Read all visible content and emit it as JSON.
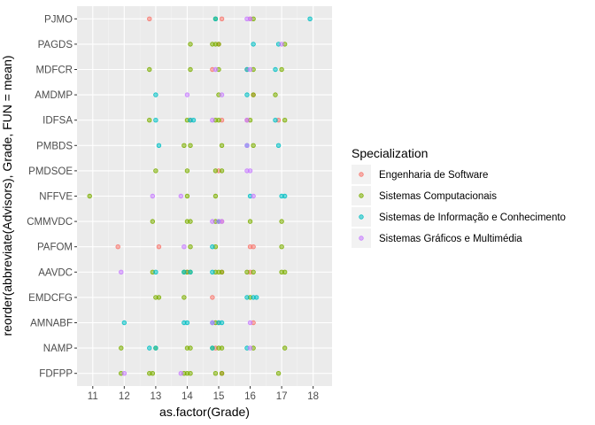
{
  "chart_data": {
    "type": "scatter",
    "title": "",
    "xlabel": "as.factor(Grade)",
    "ylabel": "reorder(abbreviate(Advisors), Grade, FUN = mean)",
    "x_ticks": [
      "11",
      "12",
      "13",
      "14",
      "15",
      "16",
      "17",
      "18"
    ],
    "xlim": [
      10.5,
      18.6
    ],
    "categories": [
      "PJMO",
      "PAGDS",
      "MDFCR",
      "AMDMP",
      "IDFSA",
      "PMBDS",
      "PMDSOE",
      "NFFVE",
      "CMMVDC",
      "PAFOM",
      "AAVDC",
      "EMDCFG",
      "AMNABF",
      "NAMP",
      "FDFPP"
    ],
    "legend": {
      "title": "Specialization",
      "position": "right",
      "entries": [
        "Engenharia de Software",
        "Sistemas Computacionais",
        "Sistemas de Informação e Conhecimento",
        "Sistemas Gráficos e Multimédia"
      ]
    },
    "colors": [
      "#F8766D",
      "#7CAE00",
      "#00BFC4",
      "#C77CFF"
    ],
    "grid": true,
    "series": [
      {
        "name": "Engenharia de Software",
        "points": [
          [
            "PJMO",
            12.8
          ],
          [
            "PJMO",
            15.1
          ],
          [
            "PJMO",
            16.0
          ],
          [
            "PAGDS",
            15.0
          ],
          [
            "MDFCR",
            14.8
          ],
          [
            "MDFCR",
            15.9
          ],
          [
            "AMDMP",
            16.1
          ],
          [
            "IDFSA",
            14.1
          ],
          [
            "IDFSA",
            15.1
          ],
          [
            "IDFSA",
            15.9
          ],
          [
            "IDFSA",
            16.9
          ],
          [
            "PMDSOE",
            15.0
          ],
          [
            "CMMVDC",
            15.1
          ],
          [
            "PAFOM",
            11.8
          ],
          [
            "PAFOM",
            13.1
          ],
          [
            "PAFOM",
            16.0
          ],
          [
            "PAFOM",
            16.1
          ],
          [
            "AAVDC",
            14.0
          ],
          [
            "AAVDC",
            15.1
          ],
          [
            "AAVDC",
            16.0
          ],
          [
            "EMDCFG",
            14.8
          ],
          [
            "AMNABF",
            15.0
          ],
          [
            "AMNABF",
            16.1
          ],
          [
            "NAMP",
            14.9
          ],
          [
            "FDFPP",
            15.1
          ]
        ]
      },
      {
        "name": "Sistemas Computacionais",
        "points": [
          [
            "PJMO",
            14.9
          ],
          [
            "PJMO",
            16.1
          ],
          [
            "PAGDS",
            14.1
          ],
          [
            "PAGDS",
            14.8
          ],
          [
            "PAGDS",
            14.9
          ],
          [
            "PAGDS",
            15.0
          ],
          [
            "PAGDS",
            17.1
          ],
          [
            "MDFCR",
            12.8
          ],
          [
            "MDFCR",
            14.1
          ],
          [
            "MDFCR",
            15.0
          ],
          [
            "MDFCR",
            16.1
          ],
          [
            "MDFCR",
            17.0
          ],
          [
            "AMDMP",
            15.0
          ],
          [
            "AMDMP",
            16.1
          ],
          [
            "AMDMP",
            16.8
          ],
          [
            "IDFSA",
            12.8
          ],
          [
            "IDFSA",
            14.0
          ],
          [
            "IDFSA",
            14.9
          ],
          [
            "IDFSA",
            15.0
          ],
          [
            "IDFSA",
            16.0
          ],
          [
            "IDFSA",
            17.1
          ],
          [
            "PMBDS",
            13.9
          ],
          [
            "PMBDS",
            14.1
          ],
          [
            "PMBDS",
            15.1
          ],
          [
            "PMBDS",
            16.1
          ],
          [
            "PMDSOE",
            13.0
          ],
          [
            "PMDSOE",
            14.0
          ],
          [
            "PMDSOE",
            14.9
          ],
          [
            "PMDSOE",
            15.1
          ],
          [
            "NFFVE",
            10.9
          ],
          [
            "NFFVE",
            14.0
          ],
          [
            "NFFVE",
            14.9
          ],
          [
            "CMMVDC",
            12.9
          ],
          [
            "CMMVDC",
            14.0
          ],
          [
            "CMMVDC",
            14.1
          ],
          [
            "CMMVDC",
            14.9
          ],
          [
            "CMMVDC",
            15.0
          ],
          [
            "CMMVDC",
            16.0
          ],
          [
            "CMMVDC",
            17.0
          ],
          [
            "PAFOM",
            14.1
          ],
          [
            "PAFOM",
            14.9
          ],
          [
            "PAFOM",
            17.0
          ],
          [
            "AAVDC",
            12.9
          ],
          [
            "AAVDC",
            13.9
          ],
          [
            "AAVDC",
            14.0
          ],
          [
            "AAVDC",
            14.1
          ],
          [
            "AAVDC",
            14.9
          ],
          [
            "AAVDC",
            15.0
          ],
          [
            "AAVDC",
            15.1
          ],
          [
            "AAVDC",
            15.9
          ],
          [
            "AAVDC",
            16.1
          ],
          [
            "AAVDC",
            17.0
          ],
          [
            "AAVDC",
            17.1
          ],
          [
            "EMDCFG",
            13.0
          ],
          [
            "EMDCFG",
            13.1
          ],
          [
            "EMDCFG",
            13.9
          ],
          [
            "EMDCFG",
            16.0
          ],
          [
            "AMNABF",
            14.9
          ],
          [
            "NAMP",
            11.9
          ],
          [
            "NAMP",
            13.0
          ],
          [
            "NAMP",
            14.0
          ],
          [
            "NAMP",
            14.1
          ],
          [
            "NAMP",
            14.8
          ],
          [
            "NAMP",
            15.0
          ],
          [
            "NAMP",
            15.1
          ],
          [
            "NAMP",
            16.1
          ],
          [
            "NAMP",
            17.1
          ],
          [
            "FDFPP",
            11.9
          ],
          [
            "FDFPP",
            12.8
          ],
          [
            "FDFPP",
            12.9
          ],
          [
            "FDFPP",
            13.9
          ],
          [
            "FDFPP",
            14.0
          ],
          [
            "FDFPP",
            14.1
          ],
          [
            "FDFPP",
            14.9
          ],
          [
            "FDFPP",
            15.1
          ],
          [
            "FDFPP",
            16.9
          ]
        ]
      },
      {
        "name": "Sistemas de Informação e Conhecimento",
        "points": [
          [
            "PJMO",
            14.9
          ],
          [
            "PJMO",
            17.9
          ],
          [
            "PAGDS",
            16.1
          ],
          [
            "PAGDS",
            16.9
          ],
          [
            "MDFCR",
            15.9
          ],
          [
            "MDFCR",
            16.8
          ],
          [
            "AMDMP",
            13.0
          ],
          [
            "AMDMP",
            15.9
          ],
          [
            "IDFSA",
            13.0
          ],
          [
            "IDFSA",
            14.1
          ],
          [
            "IDFSA",
            14.2
          ],
          [
            "IDFSA",
            16.8
          ],
          [
            "PMBDS",
            13.1
          ],
          [
            "PMBDS",
            15.9
          ],
          [
            "PMBDS",
            16.9
          ],
          [
            "NFFVE",
            16.0
          ],
          [
            "NFFVE",
            17.0
          ],
          [
            "NFFVE",
            17.1
          ],
          [
            "CMMVDC",
            15.0
          ],
          [
            "PAFOM",
            14.8
          ],
          [
            "AAVDC",
            13.0
          ],
          [
            "AAVDC",
            13.9
          ],
          [
            "AAVDC",
            14.1
          ],
          [
            "AAVDC",
            14.8
          ],
          [
            "EMDCFG",
            15.9
          ],
          [
            "EMDCFG",
            16.1
          ],
          [
            "EMDCFG",
            16.2
          ],
          [
            "AMNABF",
            12.0
          ],
          [
            "AMNABF",
            13.9
          ],
          [
            "AMNABF",
            14.0
          ],
          [
            "AMNABF",
            14.8
          ],
          [
            "AMNABF",
            15.0
          ],
          [
            "AMNABF",
            15.1
          ],
          [
            "NAMP",
            12.8
          ],
          [
            "NAMP",
            13.0
          ],
          [
            "NAMP",
            14.8
          ],
          [
            "NAMP",
            15.9
          ]
        ]
      },
      {
        "name": "Sistemas Gráficos e Multimédia",
        "points": [
          [
            "PJMO",
            15.9
          ],
          [
            "PJMO",
            16.0
          ],
          [
            "PAGDS",
            17.0
          ],
          [
            "MDFCR",
            14.9
          ],
          [
            "MDFCR",
            16.0
          ],
          [
            "AMDMP",
            14.0
          ],
          [
            "AMDMP",
            15.1
          ],
          [
            "IDFSA",
            14.8
          ],
          [
            "IDFSA",
            15.9
          ],
          [
            "PMBDS",
            15.9
          ],
          [
            "PMDSOE",
            15.9
          ],
          [
            "PMDSOE",
            16.0
          ],
          [
            "NFFVE",
            12.9
          ],
          [
            "NFFVE",
            13.8
          ],
          [
            "NFFVE",
            16.1
          ],
          [
            "CMMVDC",
            14.8
          ],
          [
            "CMMVDC",
            15.0
          ],
          [
            "CMMVDC",
            15.1
          ],
          [
            "PAFOM",
            13.9
          ],
          [
            "AAVDC",
            11.9
          ],
          [
            "AMNABF",
            14.8
          ],
          [
            "AMNABF",
            16.0
          ],
          [
            "NAMP",
            16.0
          ],
          [
            "FDFPP",
            12.0
          ],
          [
            "FDFPP",
            13.8
          ]
        ]
      }
    ]
  }
}
